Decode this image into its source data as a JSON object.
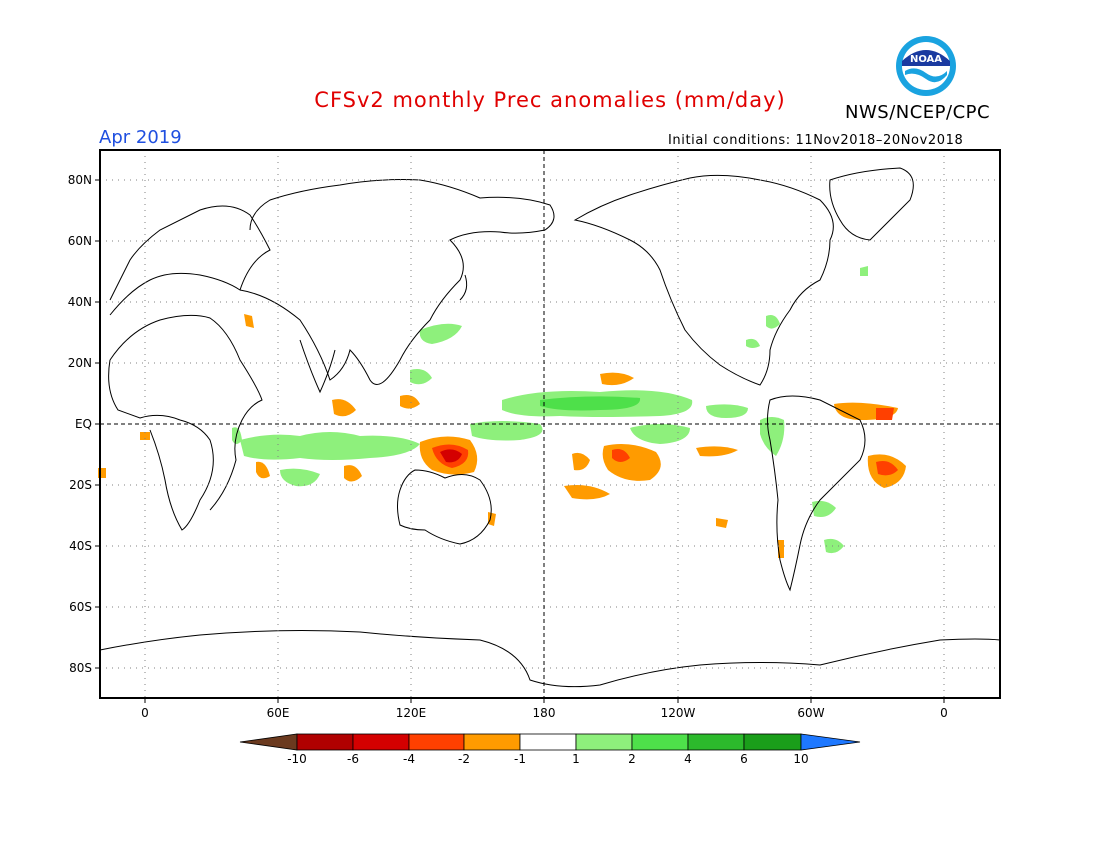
{
  "header": {
    "title": "CFSv2 monthly Prec anomalies (mm/day)",
    "month": "Apr 2019",
    "agency": "NWS/NCEP/CPC",
    "initial_conditions": "Initial conditions: 11Nov2018–20Nov2018",
    "logo_text": "NOAA"
  },
  "map": {
    "lat_labels": [
      "80N",
      "60N",
      "40N",
      "20N",
      "EQ",
      "20S",
      "40S",
      "60S",
      "80S"
    ],
    "lon_labels": [
      "0",
      "60E",
      "120E",
      "180",
      "120W",
      "60W",
      "0"
    ]
  },
  "legend": {
    "labels": [
      "-10",
      "-6",
      "-4",
      "-2",
      "-1",
      "1",
      "2",
      "4",
      "6",
      "10"
    ],
    "colors": {
      "lt_minus10": "#6b3a1f",
      "m10_m6": "#b00000",
      "m6_m4": "#d40000",
      "m4_m2": "#ff4000",
      "m2_m1": "#ff9b00",
      "m1_1": "#ffffff",
      "p1_p2": "#8ef07c",
      "p2_p4": "#4ee04a",
      "p4_p6": "#2cba2c",
      "p6_p10": "#1a9e1a",
      "gt_10": "#1e78ff"
    }
  }
}
